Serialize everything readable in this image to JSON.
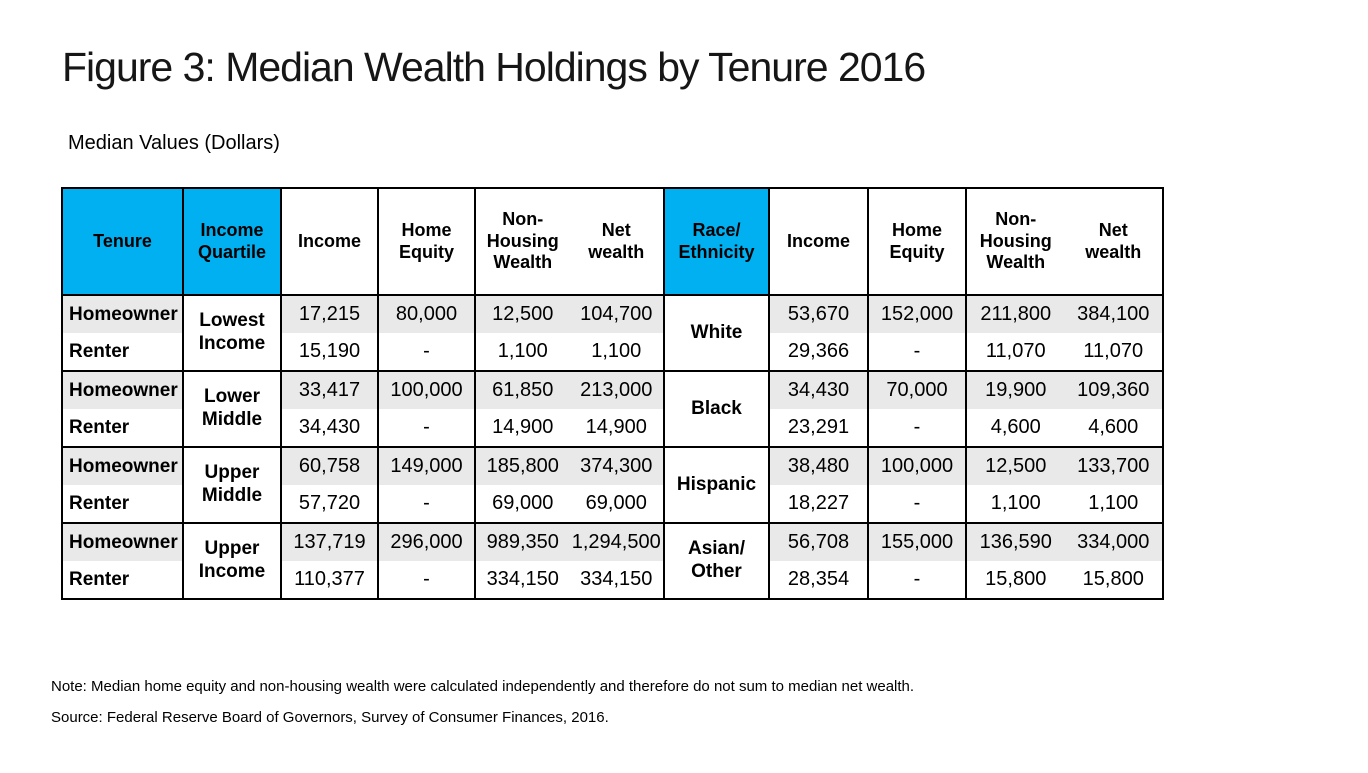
{
  "title": "Figure 3: Median Wealth Holdings by Tenure 2016",
  "subtitle": "Median Values (Dollars)",
  "note": "Note: Median home equity and non-housing wealth were calculated independently and therefore do not sum to median net wealth.",
  "source": "Source: Federal Reserve Board of Governors, Survey of Consumer Finances, 2016.",
  "colors": {
    "header_blue": "#00B0F0",
    "row_shade": "#E9E9E9",
    "border": "#000000",
    "background": "#FFFFFF"
  },
  "table": {
    "headers": {
      "tenure": [
        "Tenure"
      ],
      "income_quartile": [
        "Income",
        "Quartile"
      ],
      "income": [
        "Income"
      ],
      "home_equity": [
        "Home",
        "Equity"
      ],
      "non_housing_wealth": [
        "Non-",
        "Housing",
        "Wealth"
      ],
      "net_wealth": [
        "Net",
        "wealth"
      ],
      "race_ethnicity": [
        "Race/",
        "Ethnicity"
      ]
    },
    "quartiles": [
      [
        "Lowest",
        "Income"
      ],
      [
        "Lower",
        "Middle"
      ],
      [
        "Upper",
        "Middle"
      ],
      [
        "Upper",
        "Income"
      ]
    ],
    "races": [
      [
        "White"
      ],
      [
        "Black"
      ],
      [
        "Hispanic"
      ],
      [
        "Asian/",
        "Other"
      ]
    ],
    "rows": [
      {
        "tenure": "Homeowner",
        "income": "17,215",
        "home_equity": "80,000",
        "non_housing": "12,500",
        "net_wealth": "104,700",
        "r_income": "53,670",
        "r_home_equity": "152,000",
        "r_non_housing": "211,800",
        "r_net_wealth": "384,100"
      },
      {
        "tenure": "Renter",
        "income": "15,190",
        "home_equity": "-",
        "non_housing": "1,100",
        "net_wealth": "1,100",
        "r_income": "29,366",
        "r_home_equity": "-",
        "r_non_housing": "11,070",
        "r_net_wealth": "11,070"
      },
      {
        "tenure": "Homeowner",
        "income": "33,417",
        "home_equity": "100,000",
        "non_housing": "61,850",
        "net_wealth": "213,000",
        "r_income": "34,430",
        "r_home_equity": "70,000",
        "r_non_housing": "19,900",
        "r_net_wealth": "109,360"
      },
      {
        "tenure": "Renter",
        "income": "34,430",
        "home_equity": "-",
        "non_housing": "14,900",
        "net_wealth": "14,900",
        "r_income": "23,291",
        "r_home_equity": "-",
        "r_non_housing": "4,600",
        "r_net_wealth": "4,600"
      },
      {
        "tenure": "Homeowner",
        "income": "60,758",
        "home_equity": "149,000",
        "non_housing": "185,800",
        "net_wealth": "374,300",
        "r_income": "38,480",
        "r_home_equity": "100,000",
        "r_non_housing": "12,500",
        "r_net_wealth": "133,700"
      },
      {
        "tenure": "Renter",
        "income": "57,720",
        "home_equity": "-",
        "non_housing": "69,000",
        "net_wealth": "69,000",
        "r_income": "18,227",
        "r_home_equity": "-",
        "r_non_housing": "1,100",
        "r_net_wealth": "1,100"
      },
      {
        "tenure": "Homeowner",
        "income": "137,719",
        "home_equity": "296,000",
        "non_housing": "989,350",
        "net_wealth": "1,294,500",
        "r_income": "56,708",
        "r_home_equity": "155,000",
        "r_non_housing": "136,590",
        "r_net_wealth": "334,000"
      },
      {
        "tenure": "Renter",
        "income": "110,377",
        "home_equity": "-",
        "non_housing": "334,150",
        "net_wealth": "334,150",
        "r_income": "28,354",
        "r_home_equity": "-",
        "r_non_housing": "15,800",
        "r_net_wealth": "15,800"
      }
    ]
  },
  "chart_data": {
    "type": "table",
    "columns": [
      "Tenure",
      "Income Quartile",
      "Income",
      "Home Equity",
      "Non-Housing Wealth",
      "Net wealth",
      "Race/Ethnicity",
      "Income",
      "Home Equity",
      "Non-Housing Wealth",
      "Net wealth"
    ],
    "rows": [
      [
        "Homeowner",
        "Lowest Income",
        "17,215",
        "80,000",
        "12,500",
        "104,700",
        "White",
        "53,670",
        "152,000",
        "211,800",
        "384,100"
      ],
      [
        "Renter",
        "",
        "15,190",
        "-",
        "1,100",
        "1,100",
        "",
        "29,366",
        "-",
        "11,070",
        "11,070"
      ],
      [
        "Homeowner",
        "Lower Middle",
        "33,417",
        "100,000",
        "61,850",
        "213,000",
        "Black",
        "34,430",
        "70,000",
        "19,900",
        "109,360"
      ],
      [
        "Renter",
        "",
        "34,430",
        "-",
        "14,900",
        "14,900",
        "",
        "23,291",
        "-",
        "4,600",
        "4,600"
      ],
      [
        "Homeowner",
        "Upper Middle",
        "60,758",
        "149,000",
        "185,800",
        "374,300",
        "Hispanic",
        "38,480",
        "100,000",
        "12,500",
        "133,700"
      ],
      [
        "Renter",
        "",
        "57,720",
        "-",
        "69,000",
        "69,000",
        "",
        "18,227",
        "-",
        "1,100",
        "1,100"
      ],
      [
        "Homeowner",
        "Upper Income",
        "137,719",
        "296,000",
        "989,350",
        "1,294,500",
        "Asian/Other",
        "56,708",
        "155,000",
        "136,590",
        "334,000"
      ],
      [
        "Renter",
        "",
        "110,377",
        "-",
        "334,150",
        "334,150",
        "",
        "28,354",
        "-",
        "15,800",
        "15,800"
      ]
    ],
    "title": "Figure 3: Median Wealth Holdings by Tenure 2016",
    "subtitle": "Median Values (Dollars)"
  }
}
